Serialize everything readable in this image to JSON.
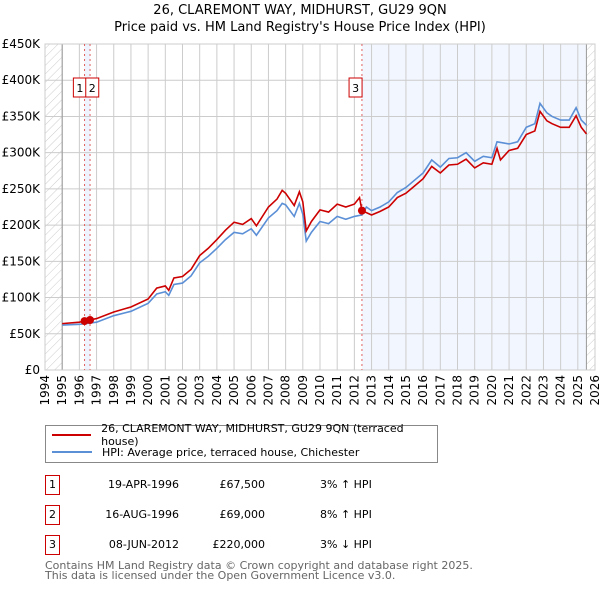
{
  "chart_data": {
    "type": "line",
    "title": "26, CLAREMONT WAY, MIDHURST, GU29 9QN",
    "subtitle": "Price paid vs. HM Land Registry's House Price Index (HPI)",
    "xlim": [
      1994,
      2026
    ],
    "ylim": [
      0,
      450000
    ],
    "x_ticks": [
      "1994",
      "1995",
      "1996",
      "1997",
      "1998",
      "1999",
      "2000",
      "2001",
      "2002",
      "2003",
      "2004",
      "2005",
      "2006",
      "2007",
      "2008",
      "2009",
      "2010",
      "2011",
      "2012",
      "2013",
      "2014",
      "2015",
      "2016",
      "2017",
      "2018",
      "2019",
      "2020",
      "2021",
      "2022",
      "2023",
      "2024",
      "2025",
      "2026"
    ],
    "y_ticks": [
      {
        "v": 0,
        "label": "£0"
      },
      {
        "v": 50000,
        "label": "£50K"
      },
      {
        "v": 100000,
        "label": "£100K"
      },
      {
        "v": 150000,
        "label": "£150K"
      },
      {
        "v": 200000,
        "label": "£200K"
      },
      {
        "v": 250000,
        "label": "£250K"
      },
      {
        "v": 300000,
        "label": "£300K"
      },
      {
        "v": 350000,
        "label": "£350K"
      },
      {
        "v": 400000,
        "label": "£400K"
      },
      {
        "v": 450000,
        "label": "£450K"
      }
    ],
    "grid": true,
    "series": [
      {
        "name": "26, CLAREMONT WAY, MIDHURST, GU29 9QN (terraced house)",
        "color": "#cc0000",
        "points": [
          [
            1995,
            64
          ],
          [
            1996,
            66
          ],
          [
            1996.3,
            67.5
          ],
          [
            1996.6,
            69
          ],
          [
            1997,
            71
          ],
          [
            1998,
            80
          ],
          [
            1999,
            87
          ],
          [
            2000,
            98
          ],
          [
            2000.5,
            113
          ],
          [
            2001,
            116
          ],
          [
            2001.2,
            110
          ],
          [
            2001.5,
            127
          ],
          [
            2002,
            129
          ],
          [
            2002.5,
            139
          ],
          [
            2003,
            158
          ],
          [
            2003.5,
            168
          ],
          [
            2004,
            180
          ],
          [
            2004.5,
            193
          ],
          [
            2005,
            204
          ],
          [
            2005.5,
            201
          ],
          [
            2006,
            209
          ],
          [
            2006.3,
            199
          ],
          [
            2007,
            225
          ],
          [
            2007.5,
            236
          ],
          [
            2007.8,
            248
          ],
          [
            2008,
            244
          ],
          [
            2008.5,
            227
          ],
          [
            2008.8,
            246
          ],
          [
            2009,
            232
          ],
          [
            2009.2,
            192
          ],
          [
            2009.5,
            205
          ],
          [
            2010,
            221
          ],
          [
            2010.5,
            218
          ],
          [
            2011,
            229
          ],
          [
            2011.5,
            225
          ],
          [
            2012,
            229
          ],
          [
            2012.3,
            238
          ],
          [
            2012.44,
            220
          ],
          [
            2013,
            214
          ],
          [
            2013.5,
            219
          ],
          [
            2014,
            225
          ],
          [
            2014.5,
            238
          ],
          [
            2015,
            244
          ],
          [
            2015.5,
            254
          ],
          [
            2016,
            264
          ],
          [
            2016.5,
            281
          ],
          [
            2017,
            272
          ],
          [
            2017.5,
            283
          ],
          [
            2018,
            284
          ],
          [
            2018.5,
            291
          ],
          [
            2019,
            279
          ],
          [
            2019.5,
            286
          ],
          [
            2020,
            284
          ],
          [
            2020.3,
            306
          ],
          [
            2020.5,
            290
          ],
          [
            2021,
            303
          ],
          [
            2021.5,
            306
          ],
          [
            2022,
            325
          ],
          [
            2022.5,
            330
          ],
          [
            2022.8,
            357
          ],
          [
            2023.2,
            344
          ],
          [
            2023.5,
            340
          ],
          [
            2024,
            335
          ],
          [
            2024.5,
            335
          ],
          [
            2024.9,
            351
          ],
          [
            2025.2,
            335
          ],
          [
            2025.5,
            326
          ]
        ]
      },
      {
        "name": "HPI: Average price, terraced house, Chichester",
        "color": "#5b8fd6",
        "points": [
          [
            1995,
            62
          ],
          [
            1996,
            63
          ],
          [
            1997,
            66
          ],
          [
            1998,
            75
          ],
          [
            1999,
            81
          ],
          [
            2000,
            92
          ],
          [
            2000.5,
            105
          ],
          [
            2001,
            108
          ],
          [
            2001.2,
            103
          ],
          [
            2001.5,
            118
          ],
          [
            2002,
            120
          ],
          [
            2002.5,
            130
          ],
          [
            2003,
            148
          ],
          [
            2003.5,
            157
          ],
          [
            2004,
            168
          ],
          [
            2004.5,
            180
          ],
          [
            2005,
            190
          ],
          [
            2005.5,
            188
          ],
          [
            2006,
            195
          ],
          [
            2006.3,
            186
          ],
          [
            2007,
            210
          ],
          [
            2007.5,
            220
          ],
          [
            2007.8,
            230
          ],
          [
            2008,
            228
          ],
          [
            2008.5,
            212
          ],
          [
            2008.8,
            230
          ],
          [
            2009,
            215
          ],
          [
            2009.2,
            178
          ],
          [
            2009.5,
            190
          ],
          [
            2010,
            205
          ],
          [
            2010.5,
            202
          ],
          [
            2011,
            212
          ],
          [
            2011.5,
            208
          ],
          [
            2012,
            212
          ],
          [
            2012.44,
            214
          ],
          [
            2012.7,
            225
          ],
          [
            2013,
            220
          ],
          [
            2013.5,
            225
          ],
          [
            2014,
            232
          ],
          [
            2014.5,
            245
          ],
          [
            2015,
            252
          ],
          [
            2015.5,
            262
          ],
          [
            2016,
            272
          ],
          [
            2016.5,
            290
          ],
          [
            2017,
            280
          ],
          [
            2017.5,
            292
          ],
          [
            2018,
            293
          ],
          [
            2018.5,
            300
          ],
          [
            2019,
            288
          ],
          [
            2019.5,
            295
          ],
          [
            2020,
            293
          ],
          [
            2020.3,
            315
          ],
          [
            2021,
            312
          ],
          [
            2021.5,
            315
          ],
          [
            2022,
            335
          ],
          [
            2022.5,
            340
          ],
          [
            2022.8,
            368
          ],
          [
            2023.2,
            355
          ],
          [
            2023.5,
            350
          ],
          [
            2024,
            345
          ],
          [
            2024.5,
            345
          ],
          [
            2024.9,
            362
          ],
          [
            2025.2,
            345
          ],
          [
            2025.5,
            338
          ]
        ]
      }
    ],
    "y_unit": "thousand GBP",
    "sales": [
      {
        "n": "1",
        "x": 1996.3,
        "y": 67.5
      },
      {
        "n": "2",
        "x": 1996.62,
        "y": 69
      },
      {
        "n": "3",
        "x": 2012.44,
        "y": 220
      }
    ],
    "data_end": 2025.5
  },
  "legend": {
    "property": "26, CLAREMONT WAY, MIDHURST, GU29 9QN (terraced house)",
    "hpi": "HPI: Average price, terraced house, Chichester"
  },
  "transactions": [
    {
      "n": "1",
      "date": "19-APR-1996",
      "price": "£67,500",
      "hpi": "3% ↑ HPI"
    },
    {
      "n": "2",
      "date": "16-AUG-1996",
      "price": "£69,000",
      "hpi": "8% ↑ HPI"
    },
    {
      "n": "3",
      "date": "08-JUN-2012",
      "price": "£220,000",
      "hpi": "3% ↓ HPI"
    }
  ],
  "footer": {
    "line1": "Contains HM Land Registry data © Crown copyright and database right 2025.",
    "line2": "This data is licensed under the Open Government Licence v3.0."
  }
}
